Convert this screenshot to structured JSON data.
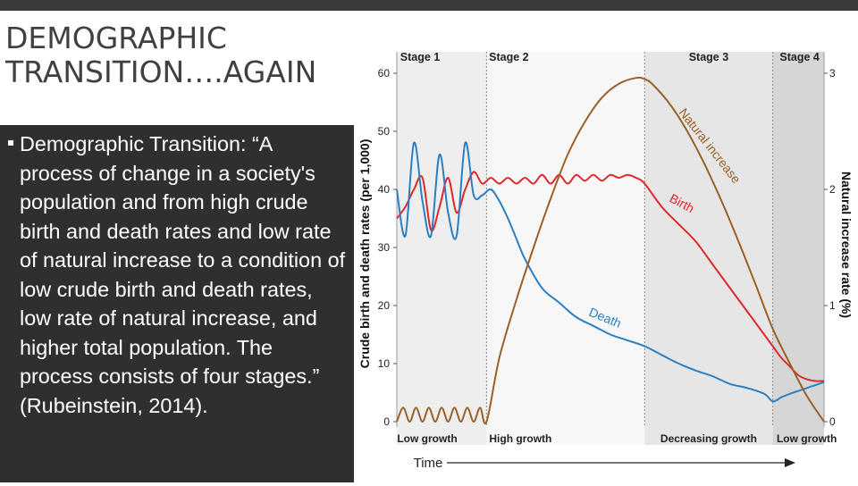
{
  "slide": {
    "title_line1": "DEMOGRAPHIC",
    "title_line2": "TRANSITION….AGAIN",
    "bullet_marker": "▪",
    "bullet_text": "Demographic Transition: “A process of change in a society's population and from high crude birth and death rates and low rate of natural increase to a condition of low crude birth and death rates, low rate of natural increase, and higher total population. The process consists of four stages.” (Rubeinstein, 2014)."
  },
  "colors": {
    "band_dark": "#2f2f2f",
    "birth": "#e0292b",
    "death": "#2b7fc3",
    "natural_increase": "#9a6127",
    "stage1_bg": "#eeeeee",
    "stage2_bg": "#f7f7f7",
    "stage3_bg": "#e6e6e6",
    "stage4_bg": "#d6d6d6"
  },
  "chart_data": {
    "type": "line",
    "time_range": [
      0,
      100
    ],
    "ylabel_left": "Crude birth and death rates (per 1,000)",
    "ylabel_right": "Natural increase rate (%)",
    "xlabel": "Time",
    "ylim_left": [
      0,
      60
    ],
    "ylim_right": [
      0,
      3
    ],
    "yticks_left": [
      0,
      10,
      20,
      30,
      40,
      50,
      60
    ],
    "yticks_right": [
      0,
      1,
      2,
      3
    ],
    "stages": [
      {
        "name": "Stage 1",
        "label": "Low growth",
        "start": 0,
        "end": 21
      },
      {
        "name": "Stage 2",
        "label": "High growth",
        "start": 21,
        "end": 58
      },
      {
        "name": "Stage 3",
        "label": "Decreasing growth",
        "start": 58,
        "end": 88
      },
      {
        "name": "Stage 4",
        "label": "Low growth",
        "start": 88,
        "end": 100
      }
    ],
    "series": [
      {
        "name": "Birth",
        "label": "Birth",
        "axis": "left",
        "x": [
          0,
          2,
          4,
          6,
          8,
          10,
          12,
          14,
          16,
          18,
          20,
          22,
          24,
          26,
          28,
          30,
          32,
          34,
          36,
          38,
          40,
          42,
          44,
          46,
          48,
          50,
          52,
          54,
          56,
          58,
          62,
          66,
          70,
          74,
          78,
          82,
          86,
          88,
          90,
          92,
          94,
          96,
          98,
          100
        ],
        "values": [
          35,
          37,
          40,
          42,
          33,
          37,
          42,
          36,
          40,
          43,
          41,
          42,
          41,
          42,
          41,
          42,
          41,
          42.5,
          41,
          42.5,
          41,
          42.5,
          41.5,
          42.5,
          41.5,
          42.5,
          42,
          42.5,
          42,
          41,
          37,
          34,
          31,
          27,
          23,
          19,
          15,
          13,
          11,
          9.5,
          8,
          7.3,
          7,
          7
        ]
      },
      {
        "name": "Death",
        "label": "Death",
        "axis": "left",
        "x": [
          0,
          2,
          4,
          6,
          8,
          10,
          12,
          14,
          16,
          18,
          20,
          22,
          24,
          26,
          28,
          30,
          34,
          38,
          42,
          46,
          50,
          54,
          58,
          62,
          66,
          70,
          74,
          78,
          82,
          86,
          88,
          90,
          92,
          94,
          96,
          98,
          100
        ],
        "values": [
          40,
          32,
          48,
          38,
          32,
          46,
          36,
          32,
          48,
          39,
          39,
          40,
          38,
          35,
          31.5,
          28,
          23,
          20.5,
          18,
          16.5,
          15,
          14,
          13,
          11.5,
          10,
          8.8,
          7.8,
          6.5,
          5.8,
          4.8,
          3.5,
          4.2,
          4.8,
          5.3,
          5.8,
          6.3,
          6.8
        ]
      },
      {
        "name": "Natural increase",
        "label": "Natural increase",
        "axis": "right",
        "x": [
          0,
          1.5,
          3,
          4.5,
          6,
          7.5,
          9,
          10.5,
          12,
          13.5,
          15,
          16.5,
          18,
          19.5,
          21,
          24,
          28,
          32,
          36,
          40,
          44,
          48,
          52,
          56,
          58,
          60,
          64,
          68,
          72,
          76,
          80,
          84,
          88,
          92,
          96,
          100
        ],
        "values": [
          0,
          0.12,
          0,
          0.12,
          0,
          0.12,
          0,
          0.12,
          0,
          0.12,
          0,
          0.12,
          0,
          0.12,
          0,
          0.55,
          1.05,
          1.5,
          1.92,
          2.3,
          2.58,
          2.79,
          2.91,
          2.96,
          2.95,
          2.9,
          2.73,
          2.5,
          2.22,
          1.9,
          1.55,
          1.18,
          0.8,
          0.5,
          0.22,
          0
        ]
      }
    ]
  }
}
